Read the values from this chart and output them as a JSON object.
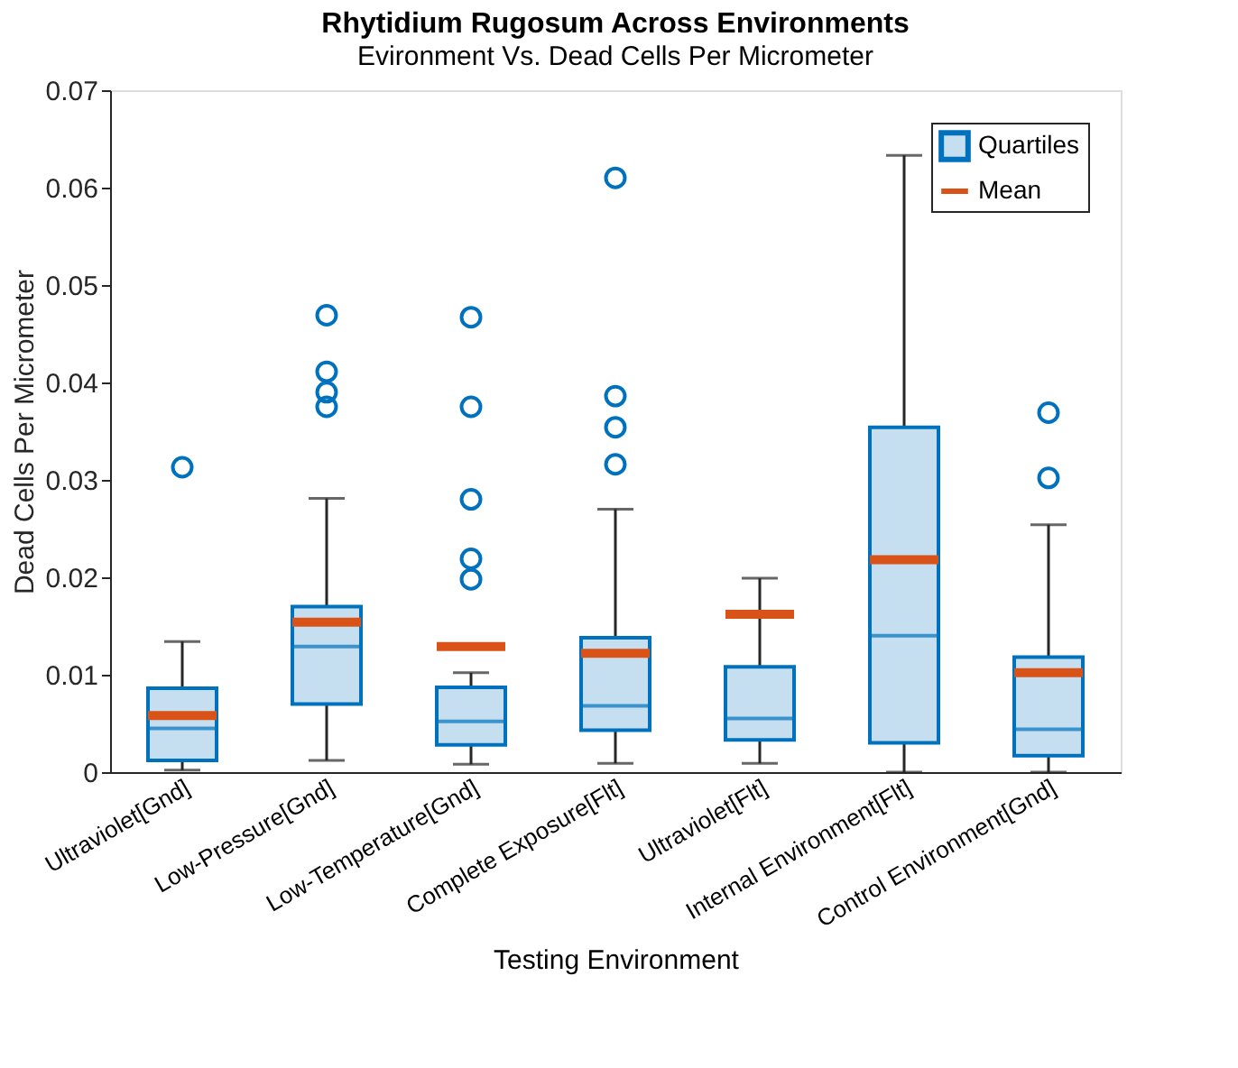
{
  "chart_data": {
    "type": "box",
    "title": "Rhytidium Rugosum Across Environments",
    "subtitle": "Evironment Vs. Dead Cells Per Micrometer",
    "xlabel": "Testing Environment",
    "ylabel": "Dead Cells Per Micrometer",
    "categories": [
      "Ultraviolet[Gnd]",
      "Low-Pressure[Gnd]",
      "Low-Temperature[Gnd]",
      "Complete Exposure[Flt]",
      "Ultraviolet[Flt]",
      "Internal Environment[Flt]",
      "Control Environment[Gnd]"
    ],
    "ylim": [
      0,
      0.07
    ],
    "yticks": [
      0,
      0.01,
      0.02,
      0.03,
      0.04,
      0.05,
      0.06,
      0.07
    ],
    "grid": false,
    "legend": "top right",
    "annotations": [
      "Mean"
    ],
    "series": [
      {
        "name": "Quartiles",
        "color": "#0072bd",
        "boxes": [
          {
            "low": 0.0002,
            "q1": 0.0012,
            "median": 0.0045,
            "q3": 0.0086,
            "high": 0.0134,
            "mean": 0.0058,
            "outliers": [
              0.0313
            ]
          },
          {
            "low": 0.0012,
            "q1": 0.007,
            "median": 0.0129,
            "q3": 0.017,
            "high": 0.0281,
            "mean": 0.0154,
            "outliers": [
              0.0375,
              0.039,
              0.0411,
              0.0469
            ]
          },
          {
            "low": 0.0008,
            "q1": 0.0028,
            "median": 0.0052,
            "q3": 0.0087,
            "high": 0.0102,
            "mean": 0.0129,
            "outliers": [
              0.0198,
              0.0219,
              0.028,
              0.0375,
              0.0467
            ]
          },
          {
            "low": 0.0009,
            "q1": 0.0043,
            "median": 0.0068,
            "q3": 0.0138,
            "high": 0.027,
            "mean": 0.0122,
            "outliers": [
              0.0316,
              0.0354,
              0.0386,
              0.061
            ]
          },
          {
            "low": 0.0009,
            "q1": 0.0033,
            "median": 0.0055,
            "q3": 0.0108,
            "high": 0.0199,
            "mean": 0.0162
          },
          {
            "low": 0.0,
            "q1": 0.003,
            "median": 0.014,
            "q3": 0.0354,
            "high": 0.0633,
            "mean": 0.0218
          },
          {
            "low": 0.0,
            "q1": 0.0017,
            "median": 0.0044,
            "q3": 0.0118,
            "high": 0.0254,
            "mean": 0.0102,
            "outliers": [
              0.0302,
              0.0369
            ]
          }
        ]
      }
    ]
  }
}
